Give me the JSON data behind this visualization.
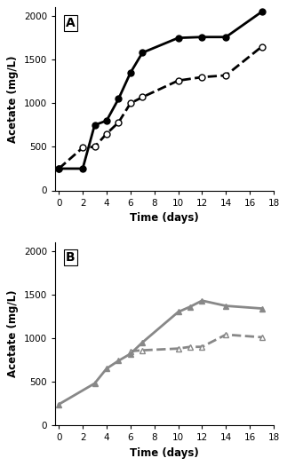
{
  "panel_A": {
    "label": "A",
    "solid_circle": {
      "x": [
        0,
        2,
        3,
        4,
        5,
        6,
        7,
        10,
        12,
        14,
        17
      ],
      "y": [
        250,
        250,
        750,
        800,
        1050,
        1350,
        1580,
        1750,
        1760,
        1760,
        2050
      ],
      "color": "#000000",
      "linestyle": "solid",
      "marker": "o",
      "markerfacecolor": "#000000",
      "linewidth": 2.0,
      "markersize": 5
    },
    "open_circle": {
      "x": [
        0,
        2,
        3,
        4,
        5,
        6,
        7,
        10,
        12,
        14,
        17
      ],
      "y": [
        250,
        490,
        500,
        650,
        780,
        1000,
        1070,
        1260,
        1300,
        1320,
        1650
      ],
      "color": "#000000",
      "linestyle": "dashed",
      "marker": "o",
      "markerfacecolor": "#ffffff",
      "linewidth": 2.0,
      "markersize": 5
    },
    "ylabel": "Acetate (mg/L)",
    "xlabel": "Time (days)",
    "ylim": [
      0,
      2100
    ],
    "xlim": [
      -0.3,
      18
    ],
    "yticks": [
      0,
      500,
      1000,
      1500,
      2000
    ],
    "xticks": [
      0,
      2,
      4,
      6,
      8,
      10,
      12,
      14,
      16,
      18
    ]
  },
  "panel_B": {
    "label": "B",
    "solid_triangle": {
      "x": [
        0,
        3,
        4,
        5,
        6,
        7,
        10,
        11,
        12,
        14,
        17
      ],
      "y": [
        240,
        480,
        650,
        740,
        820,
        950,
        1300,
        1360,
        1430,
        1370,
        1340
      ],
      "color": "#888888",
      "linestyle": "solid",
      "marker": "^",
      "markerfacecolor": "#888888",
      "linewidth": 2.0,
      "markersize": 5
    },
    "open_triangle": {
      "x": [
        6,
        7,
        10,
        11,
        12,
        14,
        17
      ],
      "y": [
        850,
        860,
        880,
        900,
        900,
        1040,
        1010
      ],
      "color": "#888888",
      "linestyle": "dashed",
      "marker": "^",
      "markerfacecolor": "#ffffff",
      "linewidth": 2.0,
      "markersize": 5
    },
    "ylabel": "Acetate (mg/L)",
    "xlabel": "Time (days)",
    "ylim": [
      0,
      2100
    ],
    "xlim": [
      -0.3,
      18
    ],
    "yticks": [
      0,
      500,
      1000,
      1500,
      2000
    ],
    "xticks": [
      0,
      2,
      4,
      6,
      8,
      10,
      12,
      14,
      16,
      18
    ]
  },
  "background_color": "#ffffff",
  "panel_label_fontsize": 10,
  "axis_label_fontsize": 8.5,
  "tick_fontsize": 7.5
}
